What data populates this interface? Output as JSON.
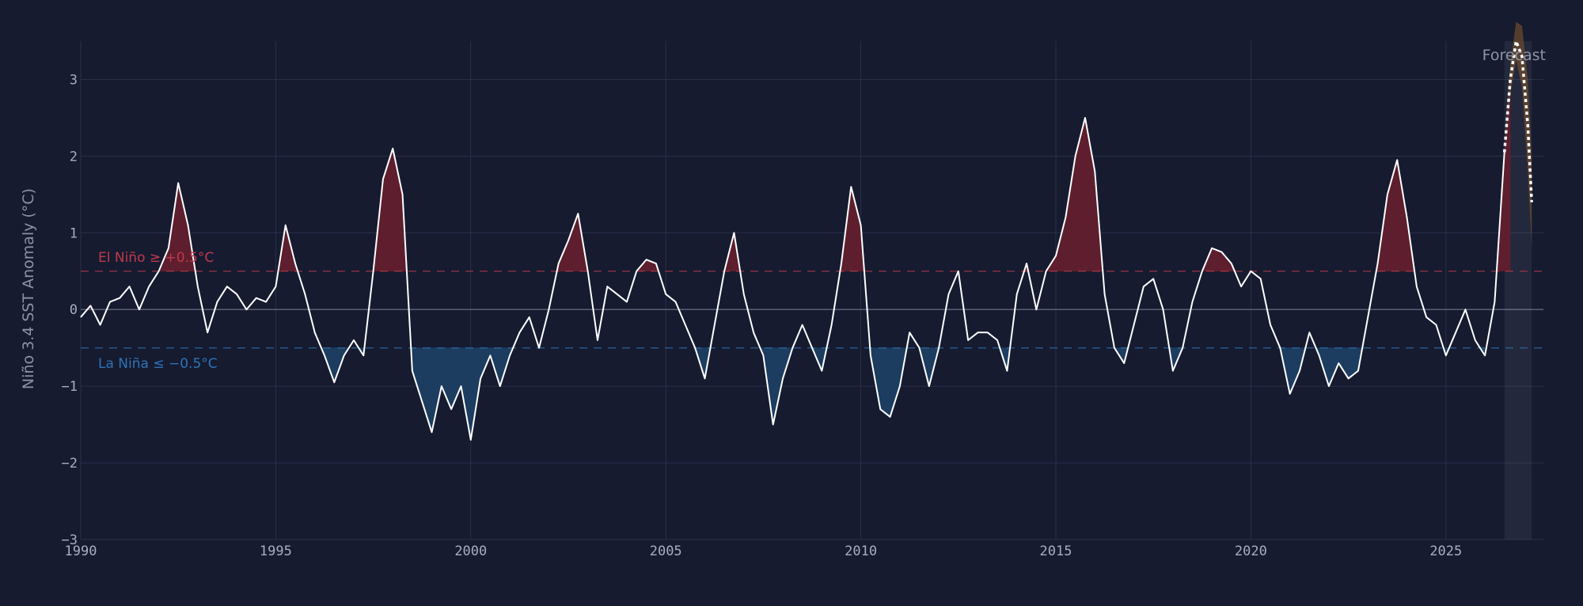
{
  "chart_data": {
    "type": "area",
    "title": "",
    "xlabel": "",
    "ylabel": "Niño 3.4 SST Anomaly (°C)",
    "xlim": [
      1990,
      2027.5
    ],
    "ylim": [
      -3,
      3.5
    ],
    "x_ticks": [
      "1990",
      "1995",
      "2000",
      "2005",
      "2010",
      "2015",
      "2020",
      "2025"
    ],
    "y_ticks": [
      "−3",
      "−2",
      "−1",
      "0",
      "1",
      "2",
      "3"
    ],
    "grid": true,
    "thresholds": {
      "el_nino": {
        "value": 0.5,
        "label": "El Niño ≥ +0.5°C",
        "color": "#b03a48"
      },
      "la_nina": {
        "value": -0.5,
        "label": "La Niña ≤ −0.5°C",
        "color": "#2f6fa8"
      }
    },
    "forecast_region": {
      "start": 2026.5,
      "end": 2027.2,
      "label": "Forecast"
    },
    "colors": {
      "background": "#161b30",
      "line": "#ffffff",
      "el_nino_fill": "#5e1f2f",
      "la_nina_fill": "#1d3d60",
      "forecast_fill": "#6b4a2e",
      "grid": "#283049",
      "zero_line": "#5a5f74"
    },
    "series": [
      {
        "name": "",
        "x": [
          1990.0,
          1990.25,
          1990.5,
          1990.75,
          1991.0,
          1991.25,
          1991.5,
          1991.75,
          1992.0,
          1992.25,
          1992.5,
          1992.75,
          1993.0,
          1993.25,
          1993.5,
          1993.75,
          1994.0,
          1994.25,
          1994.5,
          1994.75,
          1995.0,
          1995.25,
          1995.5,
          1995.75,
          1996.0,
          1996.25,
          1996.5,
          1996.75,
          1997.0,
          1997.25,
          1997.5,
          1997.75,
          1998.0,
          1998.25,
          1998.5,
          1998.75,
          1999.0,
          1999.25,
          1999.5,
          1999.75,
          2000.0,
          2000.25,
          2000.5,
          2000.75,
          2001.0,
          2001.25,
          2001.5,
          2001.75,
          2002.0,
          2002.25,
          2002.5,
          2002.75,
          2003.0,
          2003.25,
          2003.5,
          2003.75,
          2004.0,
          2004.25,
          2004.5,
          2004.75,
          2005.0,
          2005.25,
          2005.5,
          2005.75,
          2006.0,
          2006.25,
          2006.5,
          2006.75,
          2007.0,
          2007.25,
          2007.5,
          2007.75,
          2008.0,
          2008.25,
          2008.5,
          2008.75,
          2009.0,
          2009.25,
          2009.5,
          2009.75,
          2010.0,
          2010.25,
          2010.5,
          2010.75,
          2011.0,
          2011.25,
          2011.5,
          2011.75,
          2012.0,
          2012.25,
          2012.5,
          2012.75,
          2013.0,
          2013.25,
          2013.5,
          2013.75,
          2014.0,
          2014.25,
          2014.5,
          2014.75,
          2015.0,
          2015.25,
          2015.5,
          2015.75,
          2016.0,
          2016.25,
          2016.5,
          2016.75,
          2017.0,
          2017.25,
          2017.5,
          2017.75,
          2018.0,
          2018.25,
          2018.5,
          2018.75,
          2019.0,
          2019.25,
          2019.5,
          2019.75,
          2020.0,
          2020.25,
          2020.5,
          2020.75,
          2021.0,
          2021.25,
          2021.5,
          2021.75,
          2022.0,
          2022.25,
          2022.5,
          2022.75,
          2023.0,
          2023.25,
          2023.5,
          2023.75,
          2024.0,
          2024.25,
          2024.5,
          2024.75,
          2025.0,
          2025.25,
          2025.5,
          2025.75,
          2026.0,
          2026.25,
          2026.5
        ],
        "y": [
          -0.1,
          0.05,
          -0.2,
          0.1,
          0.15,
          0.3,
          0.0,
          0.3,
          0.5,
          0.8,
          1.65,
          1.1,
          0.3,
          -0.3,
          0.1,
          0.3,
          0.2,
          0.0,
          0.15,
          0.1,
          0.3,
          1.1,
          0.6,
          0.2,
          -0.3,
          -0.6,
          -0.95,
          -0.6,
          -0.4,
          -0.6,
          0.5,
          1.7,
          2.1,
          1.5,
          -0.8,
          -1.2,
          -1.6,
          -1.0,
          -1.3,
          -1.0,
          -1.7,
          -0.9,
          -0.6,
          -1.0,
          -0.6,
          -0.3,
          -0.1,
          -0.5,
          0.0,
          0.6,
          0.9,
          1.25,
          0.5,
          -0.4,
          0.3,
          0.2,
          0.1,
          0.5,
          0.65,
          0.6,
          0.2,
          0.1,
          -0.2,
          -0.5,
          -0.9,
          -0.2,
          0.5,
          1.0,
          0.2,
          -0.3,
          -0.6,
          -1.5,
          -0.9,
          -0.5,
          -0.2,
          -0.5,
          -0.8,
          -0.2,
          0.6,
          1.6,
          1.1,
          -0.6,
          -1.3,
          -1.4,
          -1.0,
          -0.3,
          -0.5,
          -1.0,
          -0.5,
          0.2,
          0.5,
          -0.4,
          -0.3,
          -0.3,
          -0.4,
          -0.8,
          0.2,
          0.6,
          0.0,
          0.5,
          0.7,
          1.2,
          2.0,
          2.5,
          1.8,
          0.2,
          -0.5,
          -0.7,
          -0.2,
          0.3,
          0.4,
          0.0,
          -0.8,
          -0.5,
          0.1,
          0.5,
          0.8,
          0.75,
          0.6,
          0.3,
          0.5,
          0.4,
          -0.2,
          -0.5,
          -1.1,
          -0.8,
          -0.3,
          -0.6,
          -1.0,
          -0.7,
          -0.9,
          -0.8,
          -0.1,
          0.6,
          1.5,
          1.95,
          1.2,
          0.3,
          -0.1,
          -0.2,
          -0.6,
          -0.3,
          0.0,
          -0.4,
          -0.6,
          0.1,
          2.05
        ]
      },
      {
        "name": "Forecast",
        "x": [
          2026.5,
          2026.65,
          2026.8,
          2026.95,
          2027.1,
          2027.2
        ],
        "y": [
          2.05,
          3.0,
          3.5,
          3.3,
          2.4,
          1.4
        ],
        "y_upper": [
          2.05,
          3.2,
          3.75,
          3.7,
          3.0,
          2.0
        ],
        "y_lower": [
          2.05,
          2.8,
          3.25,
          2.9,
          1.8,
          0.8
        ]
      }
    ]
  }
}
